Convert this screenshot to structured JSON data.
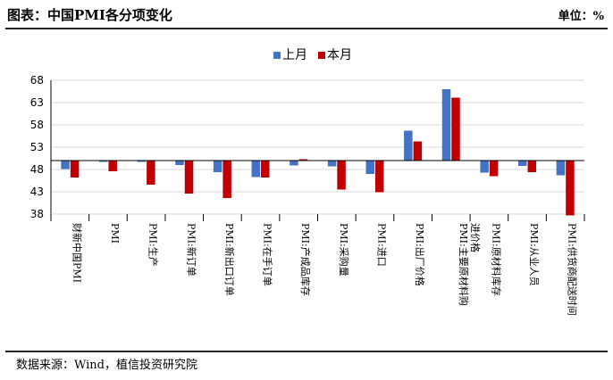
{
  "header": {
    "title": "图表：中国PMI各分项变化",
    "unit": "单位：%"
  },
  "footer": {
    "source": "数据来源：Wind，植信投资研究院"
  },
  "colors": {
    "prev": "#4472C4",
    "curr": "#C00000",
    "grid": "#D9D9D9",
    "axis": "#000000"
  },
  "chart_data": {
    "type": "bar",
    "title": "",
    "xlabel": "",
    "ylabel": "",
    "ylim": [
      38,
      68
    ],
    "yticks": [
      38,
      43,
      48,
      53,
      58,
      63,
      68
    ],
    "baseline": 50,
    "grid": true,
    "legend_position": "top-center",
    "categories": [
      "财新中国PMI",
      "PMI",
      "PMI:生产",
      "PMI:新订单",
      "PMI:新出口订单",
      "PMI:在手订单",
      "PMI:产成品库存",
      "PMI:采购量",
      "PMI:进口",
      "PMI:出厂价格",
      "PMI:主要原材料购进价格",
      "PMI:原材料库存",
      "PMI:从业人员",
      "PMI:供货商配送时间"
    ],
    "series": [
      {
        "name": "上月",
        "color": "#4472C4",
        "values": [
          48.1,
          49.7,
          49.7,
          49.0,
          47.4,
          46.3,
          48.9,
          48.7,
          47.0,
          56.7,
          66.0,
          47.3,
          48.8,
          46.7
        ]
      },
      {
        "name": "本月",
        "color": "#C00000",
        "values": [
          46.2,
          47.6,
          44.6,
          42.6,
          41.6,
          46.2,
          50.3,
          43.5,
          42.9,
          54.3,
          64.1,
          46.5,
          47.4,
          37.7
        ]
      }
    ]
  }
}
